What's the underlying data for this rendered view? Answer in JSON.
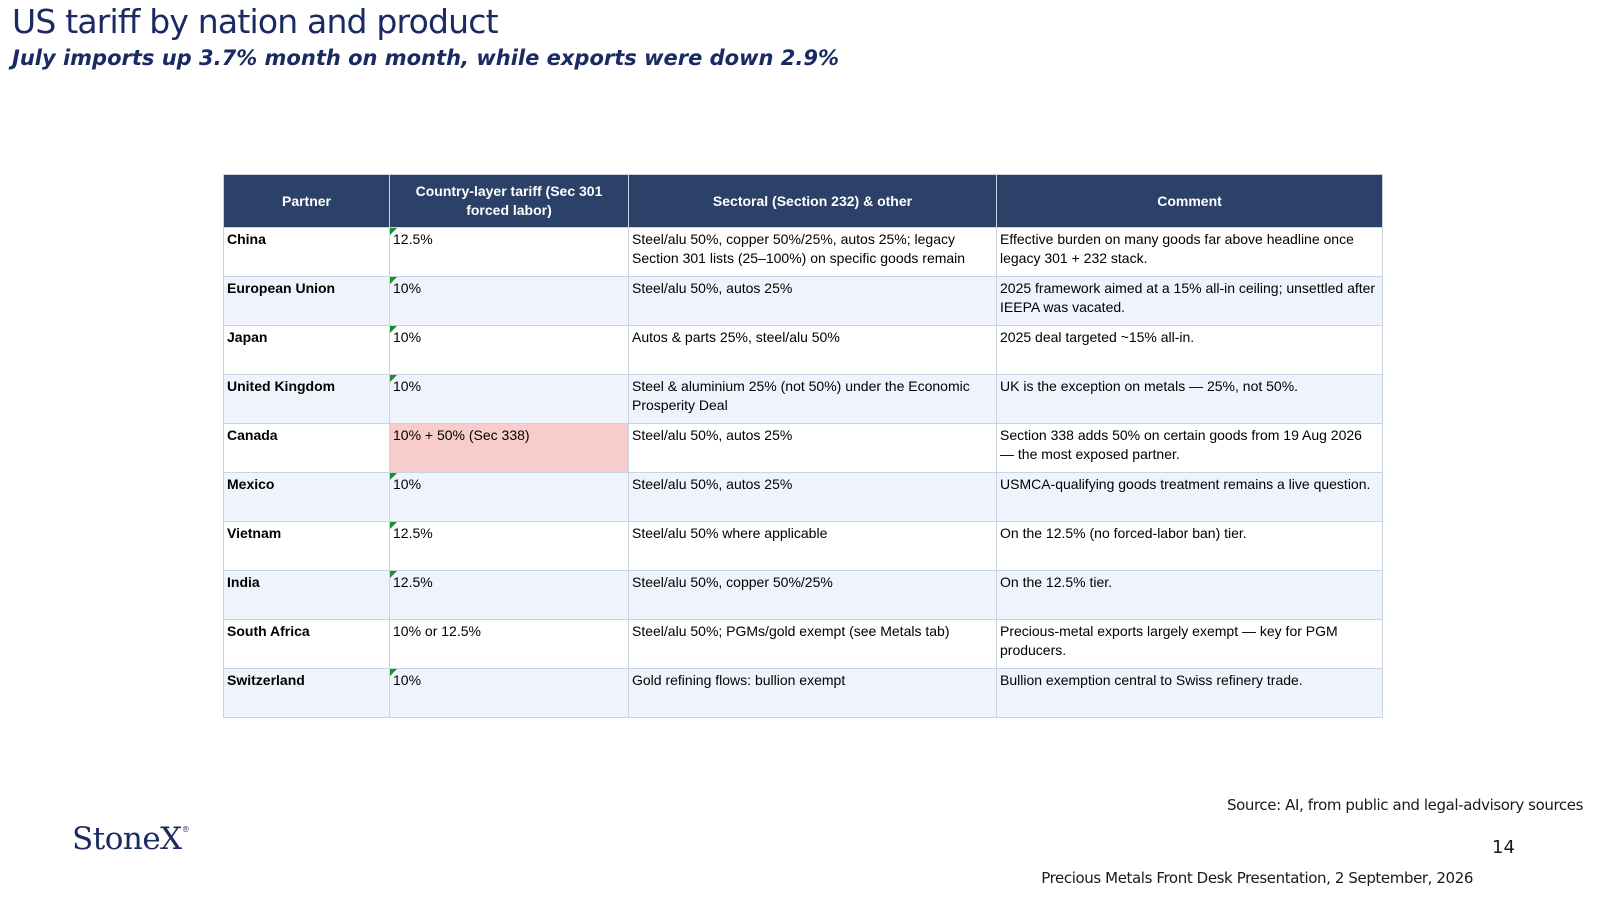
{
  "slide": {
    "title": "US tariff by nation and product",
    "subtitle": "July imports up 3.7% month on month, while exports were down 2.9%"
  },
  "table": {
    "headers": [
      "Partner",
      "Country-layer tariff (Sec 301 forced labor)",
      "Sectoral (Section 232) & other",
      "Comment"
    ],
    "rows": [
      {
        "partner": "China",
        "tariff": "12.5%",
        "sectoral": "Steel/alu 50%, copper 50%/25%, autos 25%; legacy Section 301 lists (25–100%) on specific goods remain",
        "comment": "Effective burden on many goods far above headline once legacy 301 + 232 stack."
      },
      {
        "partner": "European Union",
        "tariff": "10%",
        "sectoral": "Steel/alu 50%, autos 25%",
        "comment": "2025 framework aimed at a 15% all-in ceiling; unsettled after IEEPA was vacated."
      },
      {
        "partner": "Japan",
        "tariff": "10%",
        "sectoral": "Autos & parts 25%, steel/alu 50%",
        "comment": "2025 deal targeted ~15% all-in."
      },
      {
        "partner": "United Kingdom",
        "tariff": "10%",
        "sectoral": "Steel & aluminium 25% (not 50%) under the Economic Prosperity Deal",
        "comment": "UK is the exception on metals — 25%, not 50%."
      },
      {
        "partner": "Canada",
        "tariff": "10% + 50% (Sec 338)",
        "sectoral": "Steel/alu 50%, autos 25%",
        "comment": "Section 338 adds 50% on certain goods from 19 Aug 2026 — the most exposed partner."
      },
      {
        "partner": "Mexico",
        "tariff": "10%",
        "sectoral": "Steel/alu 50%, autos 25%",
        "comment": "USMCA-qualifying goods treatment remains a live question."
      },
      {
        "partner": "Vietnam",
        "tariff": "12.5%",
        "sectoral": "Steel/alu 50% where applicable",
        "comment": "On the 12.5% (no forced-labor ban) tier."
      },
      {
        "partner": "India",
        "tariff": "12.5%",
        "sectoral": "Steel/alu 50%, copper 50%/25%",
        "comment": "On the 12.5% tier."
      },
      {
        "partner": "South Africa",
        "tariff": "10% or 12.5%",
        "sectoral": "Steel/alu 50%; PGMs/gold exempt (see Metals tab)",
        "comment": "Precious-metal exports largely exempt — key for PGM producers."
      },
      {
        "partner": "Switzerland",
        "tariff": "10%",
        "sectoral": "Gold refining flows: bullion exempt",
        "comment": "Bullion exemption central to Swiss refinery trade."
      }
    ]
  },
  "footer": {
    "source": "Source: AI, from public and legal-advisory sources",
    "logo": "StoneX",
    "page_number": "14",
    "presentation": "Precious Metals Front Desk Presentation, 2 September, 2026"
  },
  "colors": {
    "title": "#1a2a63",
    "header_bg": "#2b4168",
    "row_alt_bg": "#eff4fc",
    "highlight_cell": "#f9cccc",
    "cell_flag": "#1f8a2e"
  }
}
